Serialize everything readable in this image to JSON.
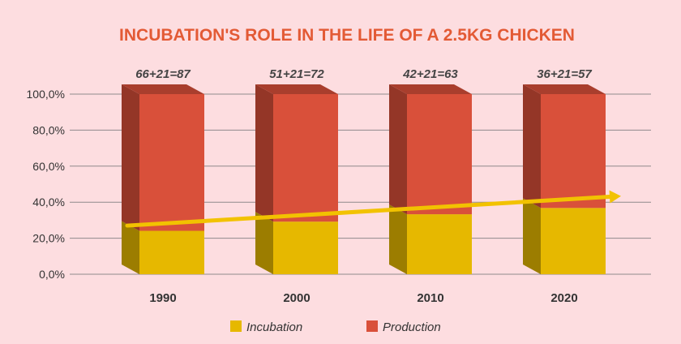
{
  "chart_data": {
    "type": "bar",
    "stacked": true,
    "style": "3d",
    "title": "INCUBATION'S ROLE IN THE LIFE OF A 2.5KG CHICKEN",
    "categories": [
      "1990",
      "2000",
      "2010",
      "2020"
    ],
    "annotations": [
      "66+21=87",
      "51+21=72",
      "42+21=63",
      "36+21=57"
    ],
    "series": [
      {
        "name": "Incubation",
        "color": "#e6b800",
        "values": [
          24.1,
          29.2,
          33.3,
          36.8
        ]
      },
      {
        "name": "Production",
        "color": "#d9503a",
        "values": [
          75.9,
          70.8,
          66.7,
          63.2
        ]
      }
    ],
    "yticks": [
      "0,0%",
      "20,0%",
      "40,0%",
      "60,0%",
      "80,0%",
      "100,0%"
    ],
    "ylim": [
      0,
      100
    ],
    "grid": true,
    "legend": "bottom",
    "trend_arrow": {
      "from": 27,
      "to": 43,
      "color": "#f2c200"
    }
  }
}
